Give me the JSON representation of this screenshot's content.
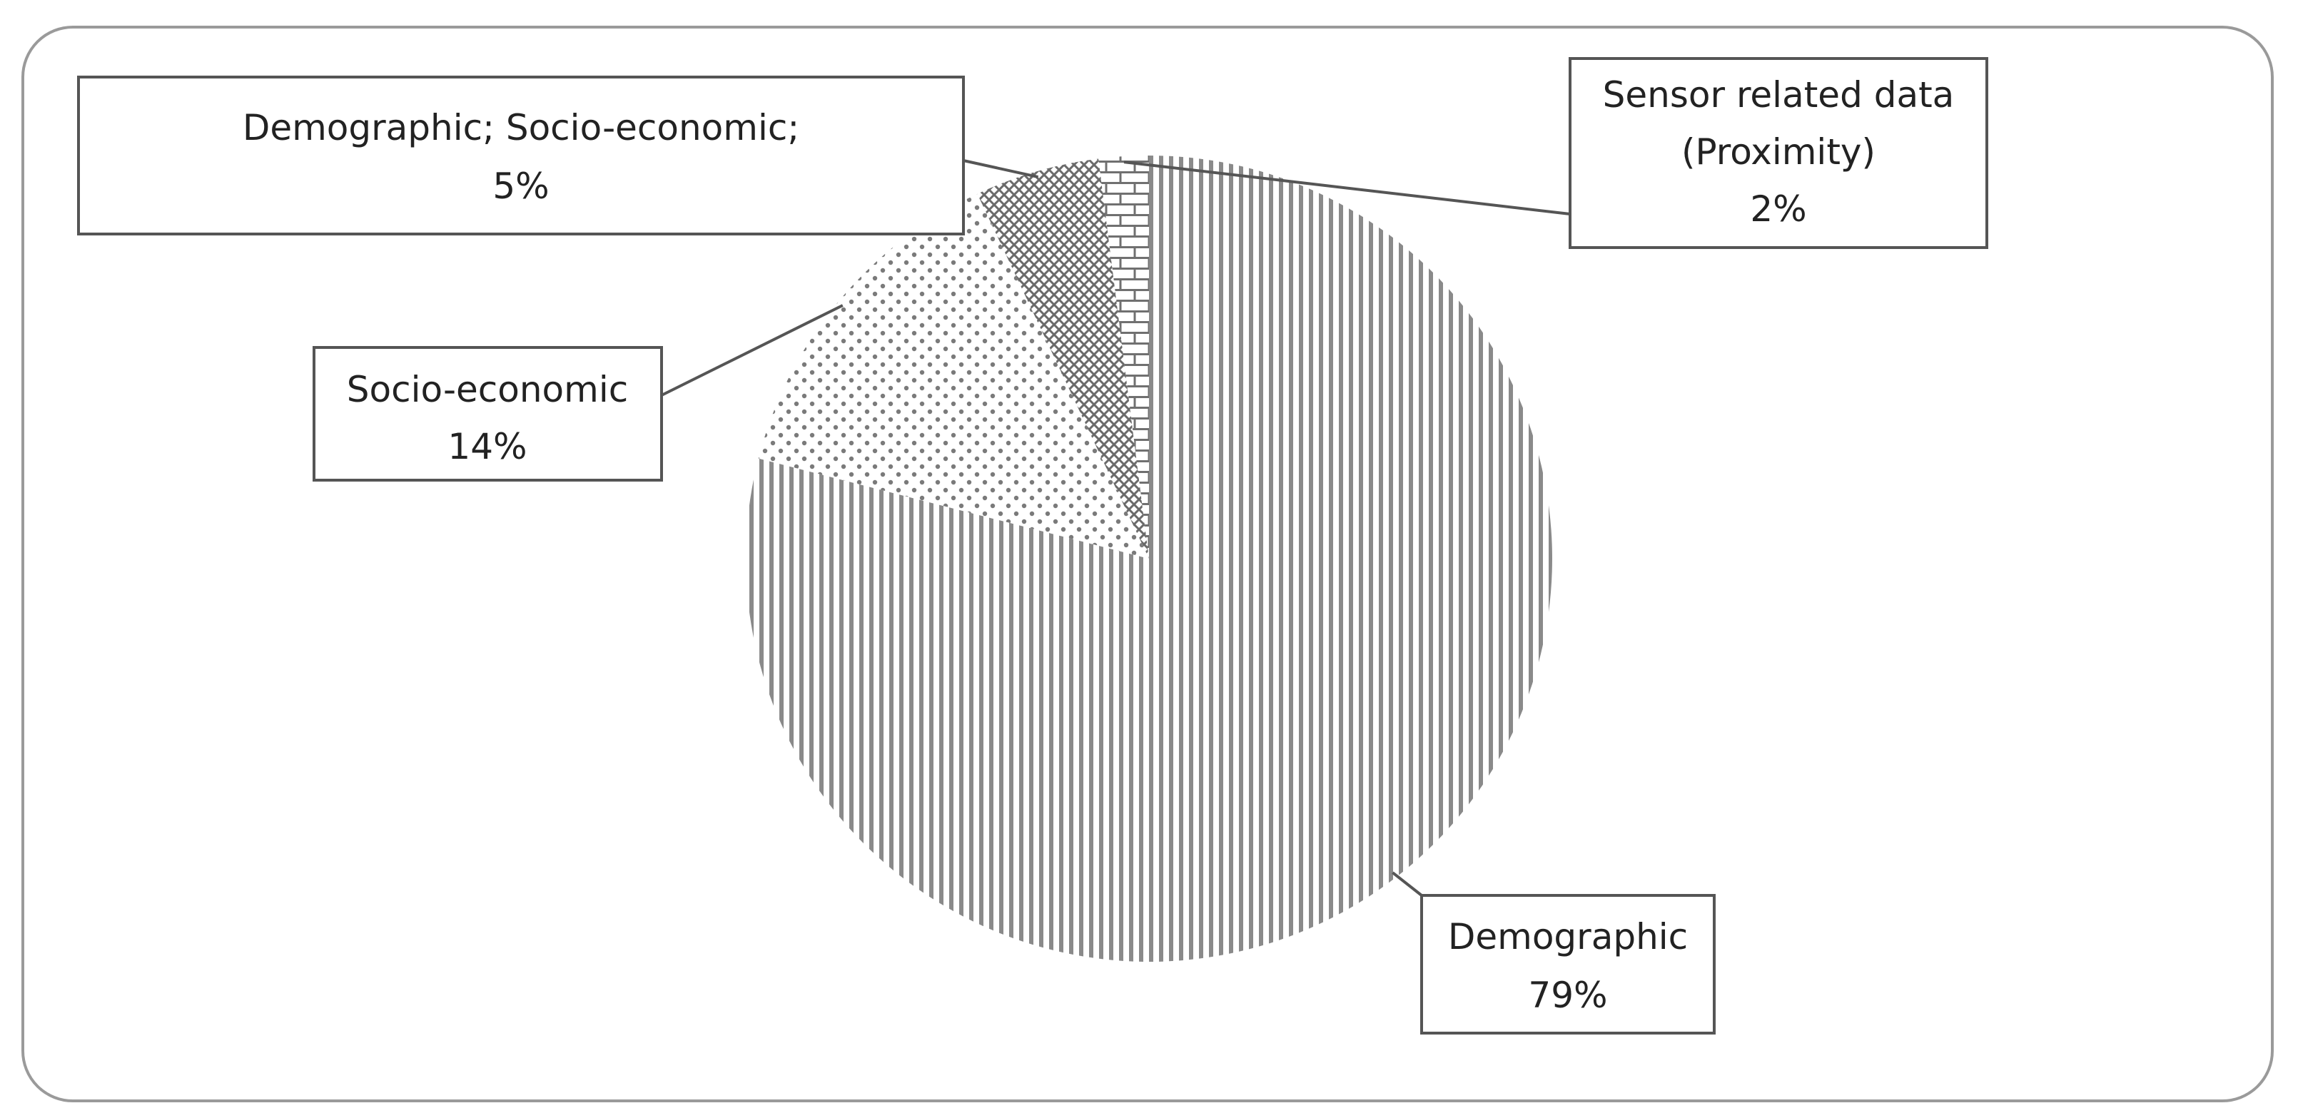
{
  "chart_data": {
    "type": "pie",
    "title": "",
    "start_angle_deg": 0,
    "direction": "clockwise",
    "legend": "none",
    "slices": [
      {
        "label_lines": [
          "Demographic"
        ],
        "value": 79,
        "value_label": "79%",
        "pattern": "vertical-stripes"
      },
      {
        "label_lines": [
          "Socio-economic"
        ],
        "value": 14,
        "value_label": "14%",
        "pattern": "dots"
      },
      {
        "label_lines": [
          "Demographic; Socio-economic;"
        ],
        "value": 5,
        "value_label": "5%",
        "pattern": "crosshatch"
      },
      {
        "label_lines": [
          "Sensor related data",
          "(Proximity)"
        ],
        "value": 2,
        "value_label": "2%",
        "pattern": "brick"
      }
    ]
  },
  "colors": {
    "border": "#9a9a9a",
    "stripe": "#8a8a8a",
    "pattern": "#707070",
    "callout": "#555555",
    "text": "#222222"
  }
}
